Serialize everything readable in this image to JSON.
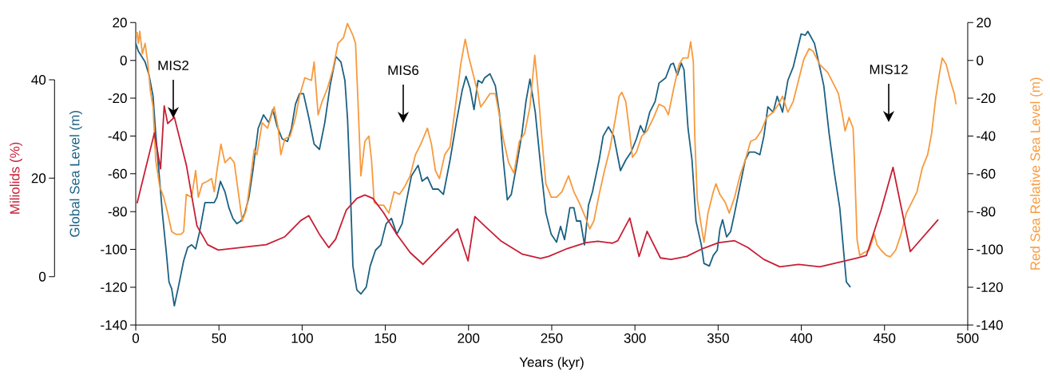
{
  "chart_data": {
    "type": "line",
    "xlabel": "Years (kyr)",
    "ylabel": "Global Sea Level (m)",
    "y2label": "Red Sea Relative Sea Level (m)",
    "y3label": "Miliolids (%)",
    "xlim": [
      0,
      500
    ],
    "xticks": [
      0,
      50,
      100,
      150,
      200,
      250,
      300,
      350,
      400,
      450,
      500
    ],
    "ylim": [
      -140,
      20
    ],
    "yticks": [
      -140,
      -120,
      -100,
      -80,
      -60,
      -40,
      -20,
      0,
      20
    ],
    "y2lim": [
      -140,
      20
    ],
    "y2ticks": [
      -140,
      -120,
      -100,
      -80,
      -60,
      -40,
      -20,
      0,
      20
    ],
    "y3lim": [
      0,
      40
    ],
    "y3ticks": [
      0,
      20,
      40
    ],
    "annotations": [
      "MIS2",
      "MIS6",
      "MIS12"
    ],
    "series": [
      {
        "color": "#1b6183",
        "axis": "y",
        "x": [
          0,
          1.6,
          5.6,
          8,
          10.4,
          12,
          13.6,
          16,
          18.4,
          20,
          21.6,
          23.2,
          25.6,
          28.8,
          31.2,
          33.6,
          36,
          38.4,
          41.6,
          44,
          47.2,
          48.8,
          50.9,
          53.6,
          56,
          58.4,
          60.8,
          63.2,
          65.6,
          68,
          70.4,
          72,
          73.6,
          76.8,
          80,
          82.4,
          84.8,
          88,
          91.2,
          93.6,
          96,
          98.4,
          100.8,
          104,
          107.2,
          110.4,
          113.6,
          116.8,
          120.3,
          123.3,
          125.7,
          127.3,
          128.9,
          130.5,
          132.9,
          135.3,
          138.5,
          140.9,
          144.1,
          147.3,
          150.5,
          153.7,
          156.9,
          160.1,
          162.5,
          165.7,
          169.7,
          172.1,
          175.3,
          178.5,
          181.7,
          184.9,
          188.9,
          192.9,
          196.1,
          198.5,
          200.9,
          203.3,
          205.7,
          208.1,
          209.7,
          212.9,
          216.1,
          218.5,
          220.9,
          223.3,
          225.7,
          228.9,
          232.1,
          234.5,
          236.9,
          240.1,
          243.3,
          246.5,
          249.7,
          252.9,
          255.3,
          257.7,
          260.9,
          263.3,
          264.9,
          267.3,
          269.7,
          272.1,
          274.5,
          278.5,
          280.9,
          284.1,
          287.3,
          291.3,
          294.5,
          297.7,
          300.9,
          303.3,
          305.7,
          308.9,
          312.1,
          314.5,
          318.5,
          321.5,
          323.1,
          325.5,
          327.9,
          329.5,
          331.9,
          334.3,
          336.7,
          339.9,
          341.5,
          344.7,
          347.1,
          349.5,
          351.1,
          352.7,
          355.1,
          357.5,
          359.9,
          363.1,
          366.3,
          368.7,
          371.9,
          375.1,
          377.5,
          379.9,
          383.1,
          385.5,
          388.7,
          391.9,
          395.1,
          399.9,
          402.3,
          403.9,
          407.9,
          411.1,
          413.5,
          416.7,
          419.9,
          423.1,
          425.5,
          427.1,
          429.5
        ],
        "values": [
          9,
          4.8,
          -0.8,
          -7.8,
          -19,
          -38.7,
          -55.5,
          -80.8,
          -101.8,
          -117.3,
          -120.8,
          -129.9,
          -120,
          -106,
          -99,
          -97.6,
          -99.7,
          -90.6,
          -75.2,
          -75.2,
          -75.2,
          -72.4,
          -64,
          -69.5,
          -78,
          -83.6,
          -86.4,
          -85,
          -80.8,
          -72.4,
          -58.3,
          -47.1,
          -35.9,
          -28.8,
          -33,
          -26,
          -34.5,
          -41.5,
          -42.9,
          -35.9,
          -23.2,
          -17.6,
          -17.6,
          -30.2,
          -44.3,
          -47.1,
          -33,
          -13.4,
          2,
          -0.8,
          -10.6,
          -31.2,
          -66.3,
          -108.8,
          -121.5,
          -123.6,
          -120,
          -108.8,
          -100.4,
          -97.6,
          -86.4,
          -83.6,
          -92,
          -86.4,
          -75.2,
          -61.1,
          -55.5,
          -63.9,
          -61.8,
          -68.1,
          -68.1,
          -70.9,
          -52.7,
          -31.6,
          -16.2,
          -8.4,
          -14.8,
          -26,
          -10.6,
          -12,
          -9.2,
          -7.1,
          -13.4,
          -27.4,
          -52.7,
          -73.8,
          -70.9,
          -55.5,
          -38.7,
          -21.8,
          -9.9,
          -27.4,
          -55.5,
          -80.8,
          -92,
          -96.2,
          -87.8,
          -94.8,
          -78,
          -78,
          -85,
          -85,
          -97.6,
          -76.6,
          -69.5,
          -52.7,
          -40.1,
          -35.2,
          -40.1,
          -58.3,
          -52.7,
          -48.5,
          -41.5,
          -34.5,
          -38.7,
          -27.4,
          -21.8,
          -12,
          -9.2,
          -2.2,
          -1.5,
          -7.8,
          -1.5,
          -5,
          -35.9,
          -52.7,
          -85,
          -97.6,
          -107.4,
          -108.8,
          -103.2,
          -100.4,
          -89.2,
          -84.3,
          -93.4,
          -90.6,
          -80.8,
          -66.7,
          -52.7,
          -48.5,
          -48.5,
          -49.9,
          -40.1,
          -24.6,
          -27.4,
          -19,
          -27.4,
          -10.6,
          -3.6,
          14,
          13.3,
          15.4,
          9,
          -3.6,
          -13.4,
          -38.7,
          -59.7,
          -78,
          -101.8,
          -117.3,
          -120
        ]
      },
      {
        "color": "#f79a3e",
        "axis": "y2",
        "x": [
          0,
          0.8,
          1.6,
          2.4,
          4,
          5.6,
          7.2,
          8.8,
          10.4,
          12,
          14.4,
          16.8,
          19.2,
          21.6,
          24,
          27.2,
          28.8,
          30.4,
          33.6,
          36,
          37.6,
          40,
          43.2,
          45.6,
          47.2,
          48.8,
          51.2,
          53.6,
          56.8,
          59.2,
          61.6,
          64,
          66.4,
          68.8,
          71.2,
          72.8,
          76,
          79.2,
          83.2,
          85.6,
          87.2,
          89.6,
          92.8,
          96,
          98.4,
          101.6,
          105.6,
          107.2,
          109.6,
          112,
          115.2,
          118.4,
          121.6,
          124.8,
          127.2,
          130.5,
          132.1,
          133.7,
          135.3,
          137.7,
          140.1,
          141.7,
          143.3,
          145.7,
          148.9,
          152.1,
          155.3,
          158.5,
          161.7,
          164.9,
          168.1,
          171.3,
          175.3,
          177.7,
          180.1,
          182.5,
          185.7,
          188.9,
          192.1,
          195.3,
          198,
          200.1,
          202.5,
          204.9,
          207.3,
          209.7,
          212.9,
          216.1,
          218.5,
          220.9,
          224.1,
          227.3,
          230.5,
          233.7,
          236.9,
          239.8,
          241.7,
          244.1,
          246.5,
          249.7,
          252.9,
          256.1,
          260.1,
          263.3,
          266.5,
          270.5,
          272.9,
          275.3,
          278.5,
          281.7,
          284.9,
          288.1,
          290.5,
          292.1,
          294.5,
          296.9,
          298.5,
          300.9,
          304.1,
          307.3,
          311.3,
          314.5,
          317.7,
          320.1,
          323.3,
          326.5,
          328.9,
          331.9,
          333.5,
          335.1,
          335.9,
          337.5,
          339.9,
          341.5,
          343.9,
          347.1,
          348.7,
          351.1,
          354.3,
          356.7,
          359.9,
          363.1,
          366.3,
          369.5,
          372.7,
          375.9,
          379.1,
          383.1,
          386.3,
          388.7,
          391.9,
          395.1,
          398.3,
          401.5,
          404.7,
          407.1,
          411.1,
          415.9,
          419.9,
          422.3,
          424.7,
          426.3,
          428.7,
          431.1,
          431.9,
          433.5,
          435.1,
          437.5,
          440.7,
          443.9,
          445.5,
          447.9,
          451.1,
          453.5,
          456.7,
          459.9,
          463.1,
          466.3,
          469.5,
          472.7,
          475.9,
          478.3,
          480.7,
          483.1,
          484.7,
          487.1,
          489.5,
          491.9,
          493
        ],
        "values": [
          13.3,
          14.7,
          9,
          15.4,
          3.4,
          9,
          -0.8,
          -16.2,
          -24.6,
          -52.7,
          -66.7,
          -72.4,
          -80.8,
          -90.6,
          -92,
          -92,
          -90.6,
          -70.9,
          -72.4,
          -58.3,
          -72.4,
          -65.3,
          -63.9,
          -62.5,
          -69.5,
          -58.3,
          -44.3,
          -54.1,
          -51.3,
          -54.1,
          -69.5,
          -85,
          -79.4,
          -63.9,
          -47.1,
          -49.9,
          -33,
          -35.9,
          -24.6,
          -35.9,
          -49.9,
          -41.5,
          -40.1,
          -30.2,
          -19,
          -9.2,
          -10.6,
          -0.8,
          -28.8,
          -21.8,
          -14.8,
          -5,
          9,
          11.9,
          19.5,
          13.3,
          9,
          -24.6,
          -61.1,
          -42.9,
          -40.1,
          -52.7,
          -75.2,
          -76.6,
          -76.6,
          -80.8,
          -69.5,
          -70.9,
          -66.7,
          -61.1,
          -49.9,
          -44.3,
          -35.9,
          -44.3,
          -58.3,
          -62.5,
          -49.9,
          -45.7,
          -24.6,
          -2.2,
          11.2,
          2,
          -6.4,
          -14.8,
          -24.6,
          -21.8,
          -17.6,
          -17.6,
          -28.8,
          -41.5,
          -54.1,
          -59.7,
          -42.9,
          -38.7,
          -24.6,
          2.7,
          -14.8,
          -41.5,
          -65.3,
          -72.4,
          -72.4,
          -69.5,
          -61.1,
          -69.5,
          -75.2,
          -83.6,
          -89.2,
          -85,
          -70.9,
          -58.3,
          -47.1,
          -31.6,
          -19,
          -16.9,
          -21.8,
          -38.7,
          -51.3,
          -48.5,
          -40.1,
          -37.3,
          -30.2,
          -23.2,
          -24.6,
          -28.8,
          -14.8,
          -2.2,
          1.3,
          1.3,
          9.8,
          -0.8,
          -38.7,
          -73.8,
          -87.8,
          -96.2,
          -80.8,
          -69.5,
          -65.3,
          -71,
          -75.2,
          -80.8,
          -72.4,
          -61.1,
          -52.7,
          -42.9,
          -41.5,
          -37.3,
          -30.2,
          -27.4,
          -23.2,
          -19,
          -27.4,
          -21.8,
          -10.6,
          0.6,
          6.2,
          4.8,
          -2.2,
          -6.4,
          -13.4,
          -17.6,
          -28.8,
          -37.3,
          -30.2,
          -35.9,
          -52.7,
          -94.8,
          -103.2,
          -101.8,
          -100.4,
          -92,
          -97.6,
          -100.4,
          -103.2,
          -103.9,
          -100.4,
          -92,
          -80.8,
          -75.2,
          -69.5,
          -56.9,
          -49.9,
          -38.7,
          -20.4,
          -6.4,
          1.3,
          -2.2,
          -10.6,
          -17.6,
          -23.2
        ]
      },
      {
        "color": "#c71f35",
        "axis": "y3",
        "x": [
          0.8,
          11.2,
          14.9,
          17.1,
          19.2,
          23.2,
          30.4,
          36.8,
          43.2,
          49.6,
          62.4,
          78.4,
          89.6,
          99.2,
          104,
          110.4,
          116,
          120.1,
          126.5,
          132.9,
          137.7,
          142.5,
          148.9,
          156.9,
          164.9,
          172.6,
          184.1,
          193.4,
          199.7,
          203.8,
          209.7,
          219.3,
          232.1,
          243.3,
          248.1,
          259.3,
          270.5,
          277.7,
          286.5,
          289.7,
          296.9,
          302.5,
          307.3,
          315.3,
          321.7,
          331.1,
          340.7,
          350.3,
          359.9,
          367.9,
          377.5,
          387.1,
          398.3,
          411.1,
          423.9,
          433.5,
          439.1,
          447.9,
          455.1,
          465.5,
          482.3
        ],
        "values": [
          14.9,
          29.2,
          21.9,
          34.7,
          31.1,
          32.4,
          22.7,
          10.3,
          6.5,
          5.4,
          5.9,
          6.5,
          8.1,
          11.4,
          12.4,
          8.6,
          5.9,
          7.6,
          13.5,
          15.9,
          16.6,
          15.9,
          13,
          8.6,
          4.9,
          2.5,
          6.5,
          9.7,
          3.2,
          12.2,
          10.3,
          7.3,
          4.6,
          3.7,
          4.1,
          5.7,
          6.9,
          7.2,
          6.8,
          7.3,
          11.9,
          4.1,
          9.2,
          3.8,
          3.5,
          4.1,
          5.7,
          6.9,
          7.3,
          5.9,
          3.5,
          2,
          2.5,
          2,
          3,
          3.8,
          4.3,
          13.5,
          22.2,
          5.1,
          11.6
        ]
      }
    ]
  }
}
